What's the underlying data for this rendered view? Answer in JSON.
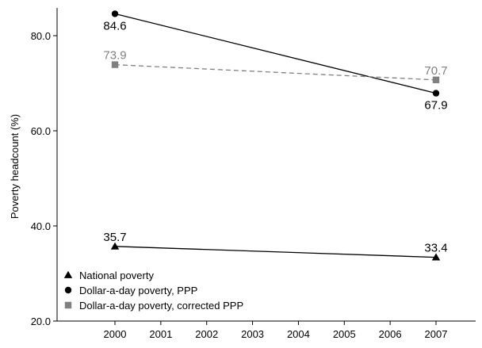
{
  "chart_data": {
    "type": "line",
    "title": "",
    "xlabel": "",
    "ylabel": "Poverty headcount (%)",
    "xlim": [
      1999,
      2008
    ],
    "ylim": [
      20,
      88
    ],
    "x_ticks": [
      2000,
      2001,
      2002,
      2003,
      2004,
      2005,
      2006,
      2007
    ],
    "y_ticks": [
      20.0,
      40.0,
      60.0,
      80.0
    ],
    "y_tick_labels": [
      "20.0",
      "40.0",
      "60.0",
      "80.0"
    ],
    "grid": false,
    "legend_position": "bottom-left",
    "series": [
      {
        "name": "National poverty",
        "marker": "triangle",
        "color": "#000000",
        "line_style": "solid",
        "x": [
          2000,
          2007
        ],
        "values": [
          35.7,
          33.4
        ],
        "labels": [
          "35.7",
          "33.4"
        ]
      },
      {
        "name": "Dollar-a-day poverty, PPP",
        "marker": "circle",
        "color": "#000000",
        "line_style": "solid",
        "x": [
          2000,
          2007
        ],
        "values": [
          84.6,
          67.9
        ],
        "labels": [
          "84.6",
          "67.9"
        ]
      },
      {
        "name": "Dollar-a-day poverty, corrected PPP",
        "marker": "square",
        "color": "#808080",
        "line_style": "dashed",
        "x": [
          2000,
          2007
        ],
        "values": [
          73.9,
          70.7
        ],
        "labels": [
          "73.9",
          "70.7"
        ]
      }
    ]
  }
}
